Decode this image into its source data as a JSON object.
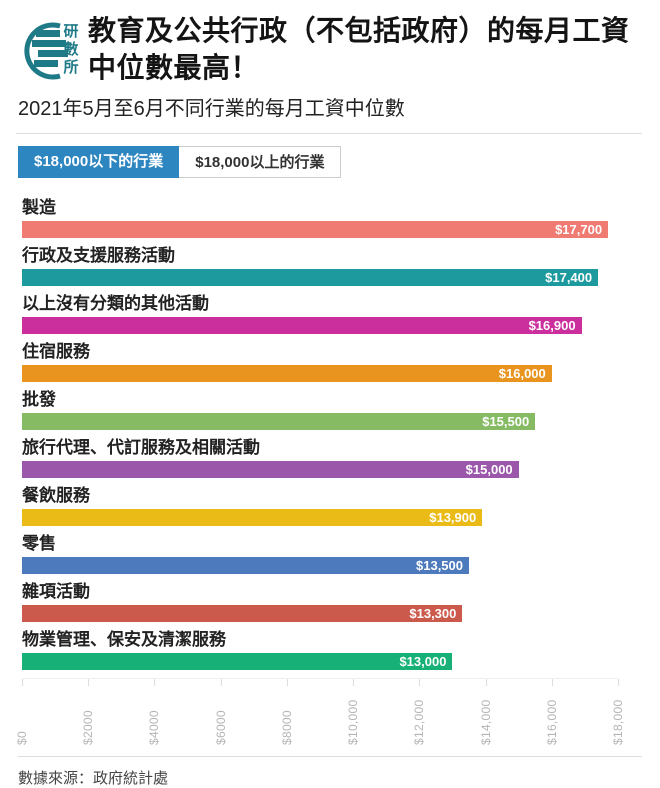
{
  "header": {
    "logo_text": "研數所",
    "title": "教育及公共行政（不包括政府）的每月工資中位數最高！",
    "subtitle": "2021年5月至6月不同行業的每月工資中位數"
  },
  "tabs": [
    {
      "label": "$18,000以下的行業",
      "active": true
    },
    {
      "label": "$18,000以上的行業",
      "active": false
    }
  ],
  "colors": {
    "active_tab_blue": "#2e86c1",
    "logo_teal": "#1f7a87",
    "axis_label_gray": "#b5b5b5",
    "divider_gray": "#dddddd"
  },
  "chart_data": {
    "type": "bar",
    "orientation": "horizontal",
    "title": "教育及公共行政（不包括政府）的每月工資中位數最高！",
    "subtitle": "2021年5月至6月不同行業的每月工資中位數",
    "categories": [
      "製造",
      "行政及支援服務活動",
      "以上沒有分類的其他活動",
      "住宿服務",
      "批發",
      "旅行代理、代訂服務及相關活動",
      "餐飲服務",
      "零售",
      "雜項活動",
      "物業管理、保安及清潔服務"
    ],
    "values": [
      17700,
      17400,
      16900,
      16000,
      15500,
      15000,
      13900,
      13500,
      13300,
      13000
    ],
    "value_labels": [
      "$17,700",
      "$17,400",
      "$16,900",
      "$16,000",
      "$15,500",
      "$15,000",
      "$13,900",
      "$13,500",
      "$13,300",
      "$13,000"
    ],
    "bar_colors": [
      "#ef7b72",
      "#1d9a9e",
      "#cb2f9d",
      "#e8941f",
      "#86bb63",
      "#9b58ab",
      "#eaba17",
      "#4d79bd",
      "#cb5a4c",
      "#17b077"
    ],
    "xlabel": "",
    "ylabel": "",
    "xlim": [
      0,
      18000
    ],
    "x_tick_values": [
      0,
      2000,
      4000,
      6000,
      8000,
      10000,
      12000,
      14000,
      16000,
      18000
    ],
    "x_tick_labels": [
      "$0",
      "$2000",
      "$4000",
      "$6000",
      "$8000",
      "$10,000",
      "$12,000",
      "$14,000",
      "$16,000",
      "$18,000"
    ],
    "grid": false,
    "legend": "none"
  },
  "footer": {
    "source": "數據來源：政府統計處"
  }
}
